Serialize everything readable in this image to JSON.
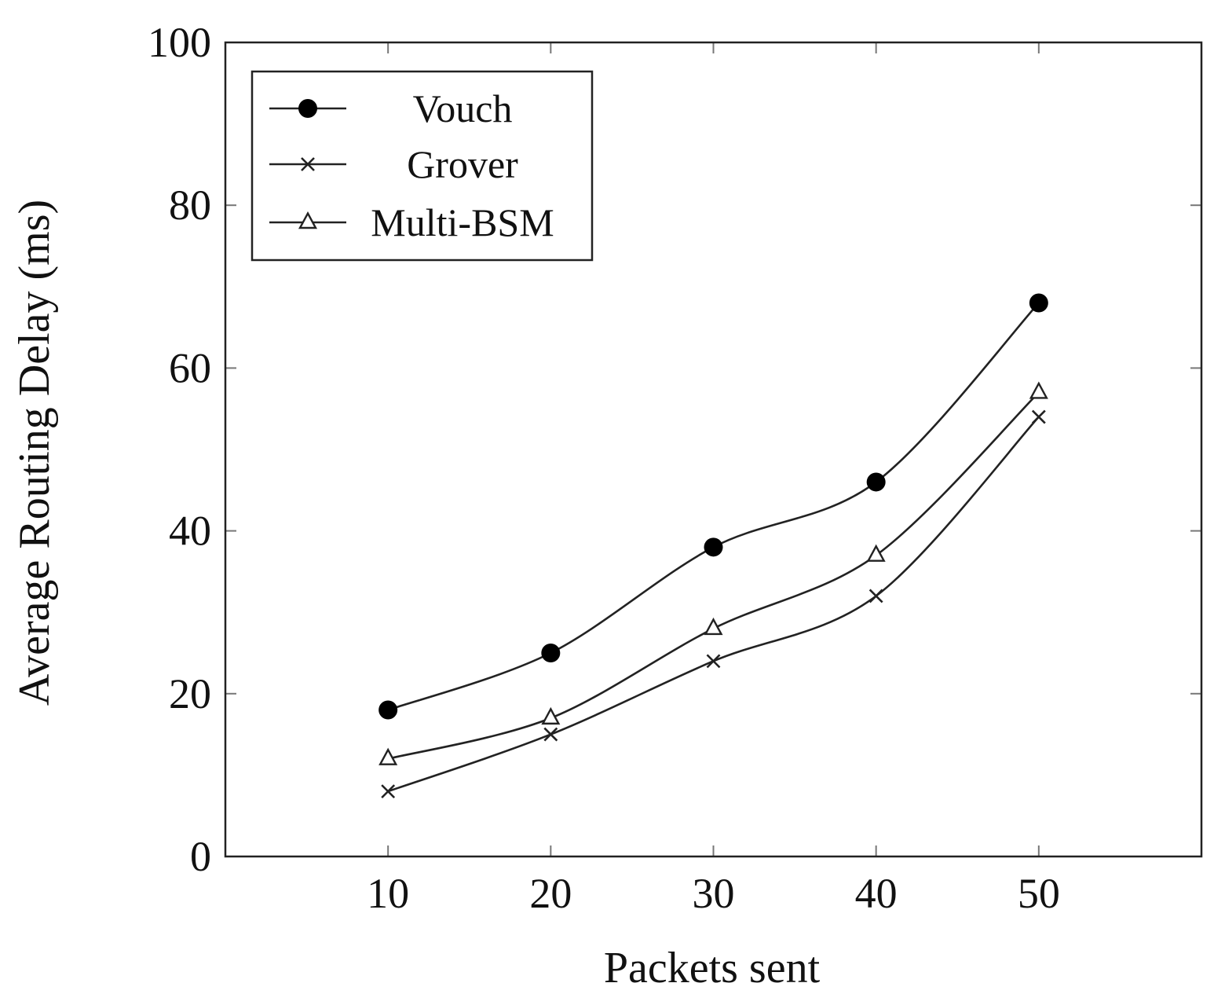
{
  "chart_data": {
    "type": "line",
    "title": "",
    "xlabel": "Packets sent",
    "ylabel": "Average Routing Delay (ms)",
    "x": [
      10,
      20,
      30,
      40,
      50
    ],
    "xlim": [
      0,
      60
    ],
    "ylim": [
      0,
      100
    ],
    "xticks": [
      10,
      20,
      30,
      40,
      50
    ],
    "yticks": [
      0,
      20,
      40,
      60,
      80,
      100
    ],
    "grid": false,
    "legend_position": "top-left",
    "series": [
      {
        "name": "Vouch",
        "marker": "filled-circle",
        "values": [
          18,
          25,
          38,
          46,
          68
        ]
      },
      {
        "name": "Grover",
        "marker": "x",
        "values": [
          8,
          15,
          24,
          32,
          54
        ]
      },
      {
        "name": "Multi-BSM",
        "marker": "open-triangle",
        "values": [
          12,
          17,
          28,
          37,
          57
        ]
      }
    ]
  }
}
